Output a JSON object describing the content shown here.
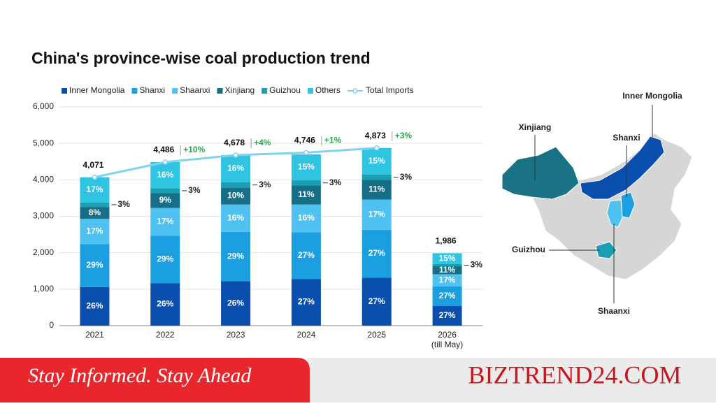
{
  "chart_data": {
    "type": "stacked_bar",
    "title": "China's province-wise coal production trend",
    "categories": [
      "2021",
      "2022",
      "2023",
      "2024",
      "2025",
      "2026\n(till May)"
    ],
    "ylim": [
      0,
      6000
    ],
    "yticks": [
      0,
      {
        "value": 1000,
        "label": "1,000"
      },
      {
        "value": 2000,
        "label": "2,000"
      },
      {
        "value": 3000,
        "label": "3,000"
      },
      {
        "value": 4000,
        "label": "4,000"
      },
      {
        "value": 5000,
        "label": "5,000"
      },
      {
        "value": 6000,
        "label": "6,000"
      }
    ],
    "grid": true,
    "series": [
      {
        "name": "Inner Mongolia",
        "color": "#0b4fae",
        "values": [
          26,
          26,
          26,
          27,
          27,
          27
        ],
        "value_labels": [
          "26%",
          "26%",
          "26%",
          "27%",
          "27%",
          "27%"
        ]
      },
      {
        "name": "Shanxi",
        "color": "#1c9fe0",
        "values": [
          29,
          29,
          29,
          27,
          27,
          27
        ],
        "value_labels": [
          "29%",
          "29%",
          "29%",
          "27%",
          "27%",
          "27%"
        ]
      },
      {
        "name": "Shaanxi",
        "color": "#50c2f1",
        "values": [
          17,
          17,
          16,
          16,
          17,
          17
        ],
        "value_labels": [
          "17%",
          "17%",
          "16%",
          "16%",
          "17%",
          "17%"
        ]
      },
      {
        "name": "Xinjiang",
        "color": "#176f87",
        "values": [
          8,
          9,
          10,
          11,
          11,
          11
        ],
        "value_labels": [
          "8%",
          "9%",
          "10%",
          "11%",
          "11%",
          "11%"
        ]
      },
      {
        "name": "Guizhou",
        "color": "#1b9fb2",
        "values": [
          3,
          3,
          3,
          3,
          3,
          3
        ],
        "value_labels": [
          "3%",
          "3%",
          "3%",
          "3%",
          "3%",
          "3%"
        ]
      },
      {
        "name": "Others",
        "color": "#2ec4e2",
        "values": [
          17,
          16,
          16,
          15,
          15,
          15
        ],
        "value_labels": [
          "17%",
          "16%",
          "16%",
          "15%",
          "15%",
          "15%"
        ]
      }
    ],
    "totals": {
      "values": [
        4071,
        4486,
        4678,
        4746,
        4873,
        1986
      ],
      "value_labels": [
        "4,071",
        "4,486",
        "4,678",
        "4,746",
        "4,873",
        "1,986"
      ]
    },
    "line": {
      "name": "Total Imports",
      "color": "#7fd3ec",
      "values": [
        4071,
        4486,
        4678,
        4746,
        4873,
        null
      ]
    },
    "growth": {
      "color": "#2aa84a",
      "values": [
        null,
        10,
        4,
        1,
        3,
        null
      ],
      "value_labels": [
        null,
        "+10%",
        "+4%",
        "+1%",
        "+3%",
        null
      ]
    }
  },
  "map": {
    "labels": [
      "Inner Mongolia",
      "Xinjiang",
      "Shanxi",
      "Guizhou",
      "Shaanxi"
    ]
  },
  "footer": {
    "tagline": "Stay Informed. Stay Ahead",
    "brand": "BIZTREND24.COM"
  }
}
